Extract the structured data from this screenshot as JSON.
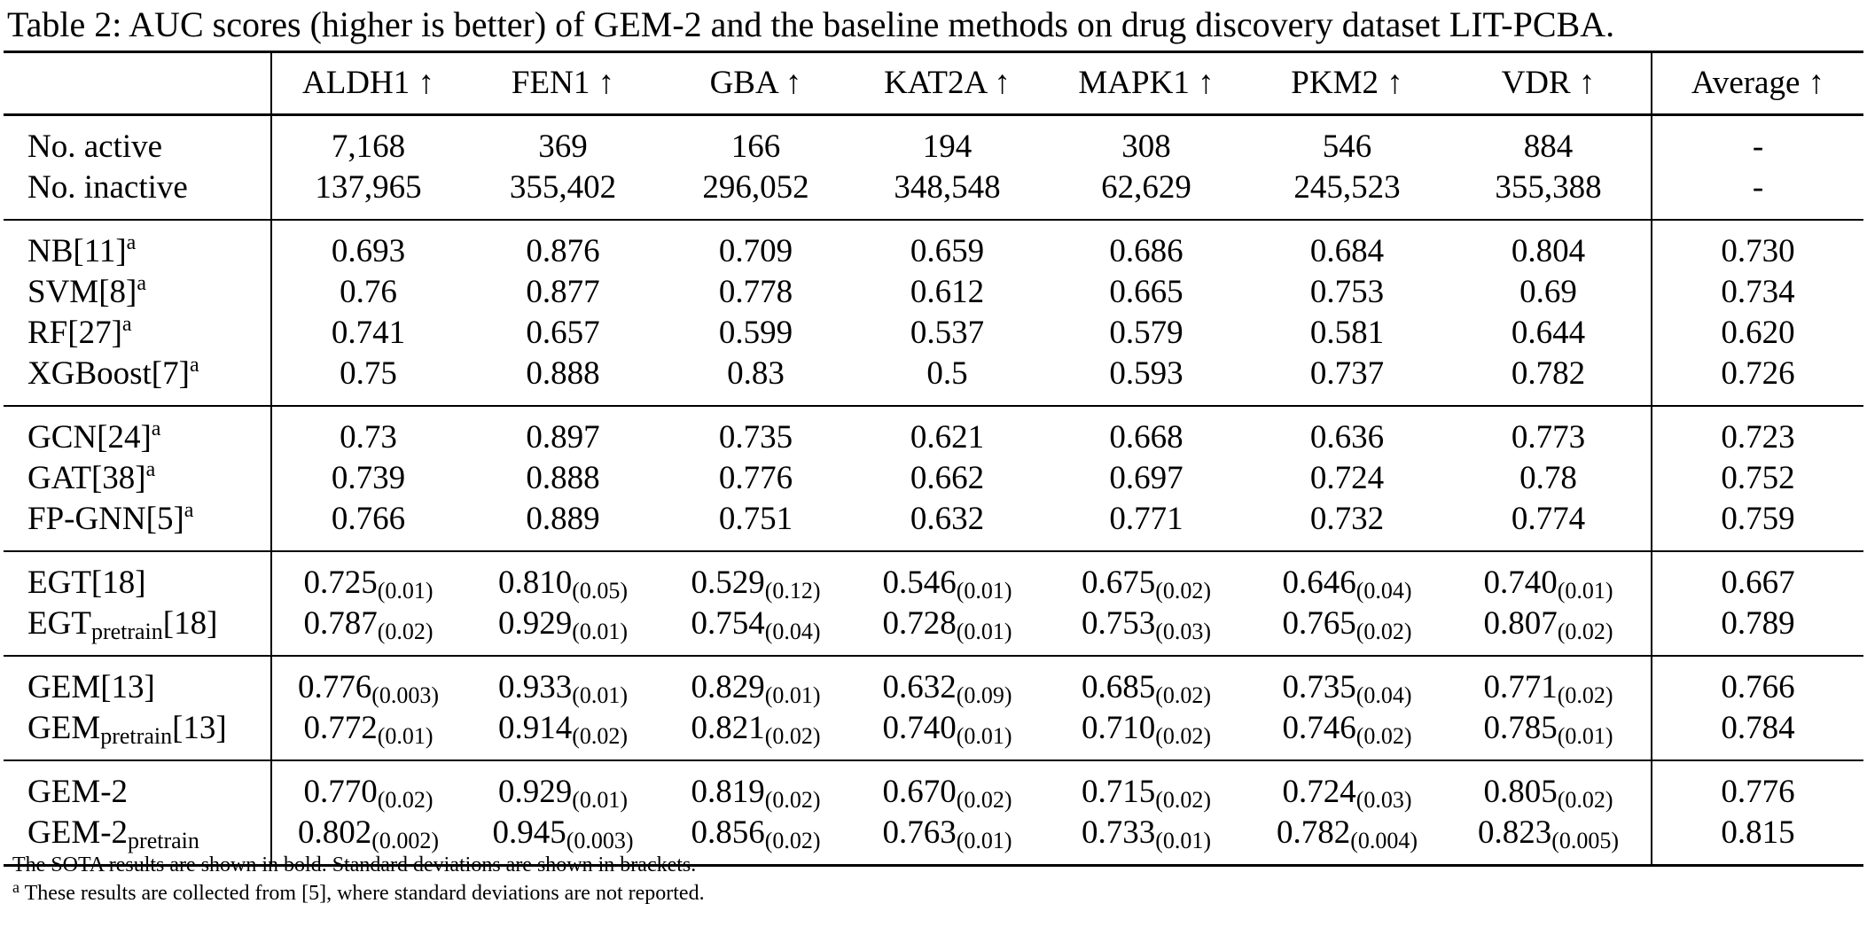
{
  "caption": "Table 2: AUC scores (higher is better) of GEM-2 and the baseline methods on drug discovery dataset LIT-PCBA.",
  "columns": [
    "ALDH1 ↑",
    "FEN1 ↑",
    "GBA ↑",
    "KAT2A ↑",
    "MAPK1 ↑",
    "PKM2 ↑",
    "VDR ↑",
    "Average ↑"
  ],
  "groups": [
    {
      "rows": [
        {
          "label": "No. active",
          "sup": "",
          "sub": "",
          "ref": "",
          "cells": [
            {
              "v": "7,168"
            },
            {
              "v": "369"
            },
            {
              "v": "166"
            },
            {
              "v": "194"
            },
            {
              "v": "308"
            },
            {
              "v": "546"
            },
            {
              "v": "884"
            }
          ],
          "avg": {
            "v": "-"
          }
        },
        {
          "label": "No. inactive",
          "sup": "",
          "sub": "",
          "ref": "",
          "cells": [
            {
              "v": "137,965"
            },
            {
              "v": "355,402"
            },
            {
              "v": "296,052"
            },
            {
              "v": "348,548"
            },
            {
              "v": "62,629"
            },
            {
              "v": "245,523"
            },
            {
              "v": "355,388"
            }
          ],
          "avg": {
            "v": "-"
          }
        }
      ]
    },
    {
      "rows": [
        {
          "label": "NB[11]",
          "sup": "a",
          "sub": "",
          "ref": "",
          "cells": [
            {
              "v": "0.693"
            },
            {
              "v": "0.876"
            },
            {
              "v": "0.709"
            },
            {
              "v": "0.659"
            },
            {
              "v": "0.686"
            },
            {
              "v": "0.684"
            },
            {
              "v": "0.804"
            }
          ],
          "avg": {
            "v": "0.730"
          }
        },
        {
          "label": "SVM[8]",
          "sup": "a",
          "sub": "",
          "ref": "",
          "cells": [
            {
              "v": "0.76"
            },
            {
              "v": "0.877"
            },
            {
              "v": "0.778"
            },
            {
              "v": "0.612"
            },
            {
              "v": "0.665"
            },
            {
              "v": "0.753"
            },
            {
              "v": "0.69"
            }
          ],
          "avg": {
            "v": "0.734"
          }
        },
        {
          "label": "RF[27]",
          "sup": "a",
          "sub": "",
          "ref": "",
          "cells": [
            {
              "v": "0.741"
            },
            {
              "v": "0.657"
            },
            {
              "v": "0.599"
            },
            {
              "v": "0.537"
            },
            {
              "v": "0.579"
            },
            {
              "v": "0.581"
            },
            {
              "v": "0.644"
            }
          ],
          "avg": {
            "v": "0.620"
          }
        },
        {
          "label": "XGBoost[7]",
          "sup": "a",
          "sub": "",
          "ref": "",
          "cells": [
            {
              "v": "0.75"
            },
            {
              "v": "0.888"
            },
            {
              "v": "0.83"
            },
            {
              "v": "0.5"
            },
            {
              "v": "0.593"
            },
            {
              "v": "0.737"
            },
            {
              "v": "0.782"
            }
          ],
          "avg": {
            "v": "0.726"
          }
        }
      ]
    },
    {
      "rows": [
        {
          "label": "GCN[24]",
          "sup": "a",
          "sub": "",
          "ref": "",
          "cells": [
            {
              "v": "0.73"
            },
            {
              "v": "0.897"
            },
            {
              "v": "0.735"
            },
            {
              "v": "0.621"
            },
            {
              "v": "0.668"
            },
            {
              "v": "0.636"
            },
            {
              "v": "0.773"
            }
          ],
          "avg": {
            "v": "0.723"
          }
        },
        {
          "label": "GAT[38]",
          "sup": "a",
          "sub": "",
          "ref": "",
          "cells": [
            {
              "v": "0.739"
            },
            {
              "v": "0.888"
            },
            {
              "v": "0.776"
            },
            {
              "v": "0.662"
            },
            {
              "v": "0.697"
            },
            {
              "v": "0.724"
            },
            {
              "v": "0.78"
            }
          ],
          "avg": {
            "v": "0.752"
          }
        },
        {
          "label": "FP-GNN[5]",
          "sup": "a",
          "sub": "",
          "ref": "",
          "cells": [
            {
              "v": "0.766"
            },
            {
              "v": "0.889"
            },
            {
              "v": "0.751"
            },
            {
              "v": "0.632"
            },
            {
              "v": "0.771",
              "bold": true
            },
            {
              "v": "0.732"
            },
            {
              "v": "0.774"
            }
          ],
          "avg": {
            "v": "0.759"
          }
        }
      ]
    },
    {
      "rows": [
        {
          "label": "EGT[18]",
          "sup": "",
          "sub": "",
          "ref": "",
          "cells": [
            {
              "v": "0.725",
              "sd": "(0.01)"
            },
            {
              "v": "0.810",
              "sd": "(0.05)"
            },
            {
              "v": "0.529",
              "sd": "(0.12)"
            },
            {
              "v": "0.546",
              "sd": "(0.01)"
            },
            {
              "v": "0.675",
              "sd": "(0.02)"
            },
            {
              "v": "0.646",
              "sd": "(0.04)"
            },
            {
              "v": "0.740",
              "sd": "(0.01)"
            }
          ],
          "avg": {
            "v": "0.667"
          }
        },
        {
          "label": "EGT",
          "sup": "",
          "sub": "pretrain",
          "ref": "[18]",
          "cells": [
            {
              "v": "0.787",
              "sd": "(0.02)"
            },
            {
              "v": "0.929",
              "sd": "(0.01)"
            },
            {
              "v": "0.754",
              "sd": "(0.04)"
            },
            {
              "v": "0.728",
              "sd": "(0.01)"
            },
            {
              "v": "0.753",
              "sd": "(0.03)"
            },
            {
              "v": "0.765",
              "sd": "(0.02)"
            },
            {
              "v": "0.807",
              "sd": "(0.02)"
            }
          ],
          "avg": {
            "v": "0.789"
          }
        }
      ]
    },
    {
      "rows": [
        {
          "label": "GEM[13]",
          "sup": "",
          "sub": "",
          "ref": "",
          "cells": [
            {
              "v": "0.776",
              "sd": "(0.003)"
            },
            {
              "v": "0.933",
              "sd": "(0.01)"
            },
            {
              "v": "0.829",
              "sd": "(0.01)"
            },
            {
              "v": "0.632",
              "sd": "(0.09)"
            },
            {
              "v": "0.685",
              "sd": "(0.02)"
            },
            {
              "v": "0.735",
              "sd": "(0.04)"
            },
            {
              "v": "0.771",
              "sd": "(0.02)"
            }
          ],
          "avg": {
            "v": "0.766"
          }
        },
        {
          "label": "GEM",
          "sup": "",
          "sub": "pretrain",
          "ref": "[13]",
          "cells": [
            {
              "v": "0.772",
              "sd": "(0.01)"
            },
            {
              "v": "0.914",
              "sd": "(0.02)"
            },
            {
              "v": "0.821",
              "sd": "(0.02)"
            },
            {
              "v": "0.740",
              "sd": "(0.01)"
            },
            {
              "v": "0.710",
              "sd": "(0.02)"
            },
            {
              "v": "0.746",
              "sd": "(0.02)"
            },
            {
              "v": "0.785",
              "sd": "(0.01)"
            }
          ],
          "avg": {
            "v": "0.784"
          }
        }
      ]
    },
    {
      "rows": [
        {
          "label": "GEM-2",
          "sup": "",
          "sub": "",
          "ref": "",
          "cells": [
            {
              "v": "0.770",
              "sd": "(0.02)"
            },
            {
              "v": "0.929",
              "sd": "(0.01)"
            },
            {
              "v": "0.819",
              "sd": "(0.02)"
            },
            {
              "v": "0.670",
              "sd": "(0.02)"
            },
            {
              "v": "0.715",
              "sd": "(0.02)"
            },
            {
              "v": "0.724",
              "sd": "(0.03)"
            },
            {
              "v": "0.805",
              "sd": "(0.02)"
            }
          ],
          "avg": {
            "v": "0.776"
          }
        },
        {
          "label": "GEM-2",
          "sup": "",
          "sub": "pretrain",
          "ref": "",
          "cells": [
            {
              "v": "0.802",
              "sd": "(0.002)",
              "bold": true
            },
            {
              "v": "0.945",
              "sd": "(0.003)",
              "bold": true
            },
            {
              "v": "0.856",
              "sd": "(0.02)",
              "bold": true
            },
            {
              "v": "0.763",
              "sd": "(0.01)",
              "bold": true
            },
            {
              "v": "0.733",
              "sd": "(0.01)"
            },
            {
              "v": "0.782",
              "sd": "(0.004)",
              "bold": true
            },
            {
              "v": "0.823",
              "sd": "(0.005)",
              "bold": true
            }
          ],
          "avg": {
            "v": "0.815",
            "bold": true
          }
        }
      ]
    }
  ],
  "footnotes": [
    {
      "mark": "",
      "text": "The SOTA results are shown in bold. Standard deviations are shown in brackets."
    },
    {
      "mark": "a",
      "text": " These results are collected from [5], where standard deviations are not reported."
    }
  ]
}
